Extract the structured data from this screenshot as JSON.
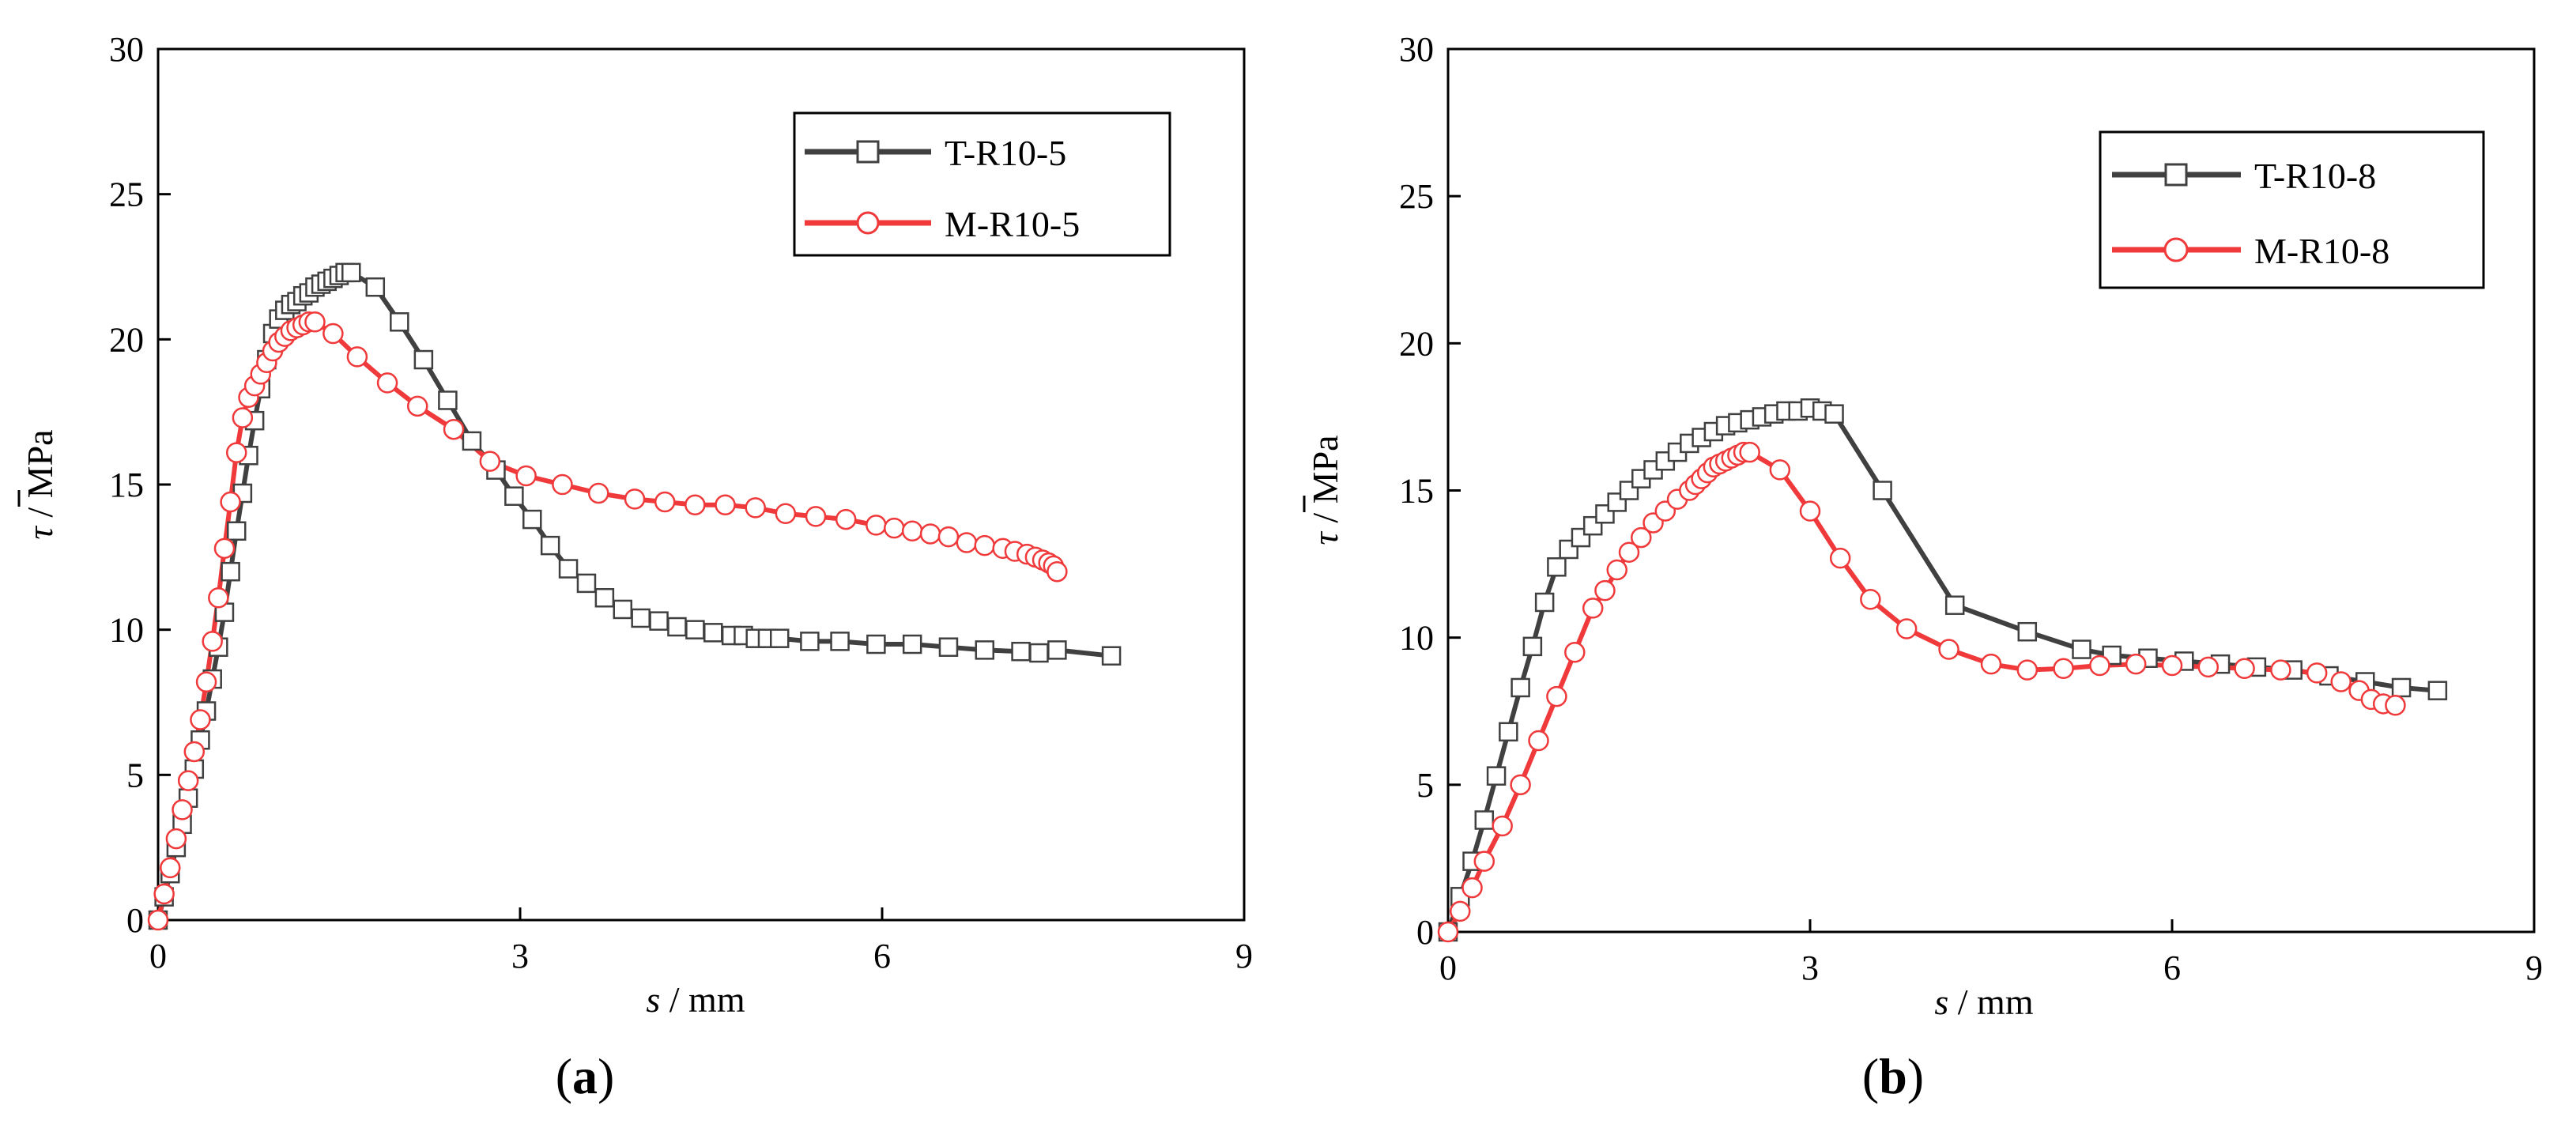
{
  "chart_data": [
    {
      "type": "line",
      "panel_label": "a",
      "xlabel_var": "s",
      "xlabel_unit": " / mm",
      "ylabel_var": "τ",
      "ylabel_unit": " / MPa",
      "xlim": [
        0,
        9
      ],
      "ylim": [
        0,
        30
      ],
      "x_ticks": [
        0,
        3,
        6,
        9
      ],
      "y_ticks": [
        0,
        5,
        10,
        15,
        20,
        25,
        30
      ],
      "grid": false,
      "legend_position": "top-right",
      "series": [
        {
          "name": "T-R10-5",
          "color": "#404040",
          "marker": "square",
          "x": [
            0,
            0.05,
            0.1,
            0.15,
            0.2,
            0.25,
            0.3,
            0.35,
            0.4,
            0.45,
            0.5,
            0.55,
            0.6,
            0.65,
            0.7,
            0.75,
            0.8,
            0.85,
            0.9,
            0.95,
            1.0,
            1.05,
            1.1,
            1.15,
            1.2,
            1.25,
            1.3,
            1.35,
            1.4,
            1.45,
            1.5,
            1.55,
            1.6,
            1.8,
            2.0,
            2.2,
            2.4,
            2.6,
            2.8,
            2.95,
            3.1,
            3.25,
            3.4,
            3.55,
            3.7,
            3.85,
            4.0,
            4.15,
            4.3,
            4.45,
            4.6,
            4.75,
            4.85,
            4.95,
            5.05,
            5.15,
            5.4,
            5.65,
            5.95,
            6.25,
            6.55,
            6.85,
            7.15,
            7.3,
            7.45,
            7.9
          ],
          "y": [
            0,
            0.8,
            1.6,
            2.5,
            3.3,
            4.2,
            5.2,
            6.2,
            7.2,
            8.3,
            9.4,
            10.6,
            12.0,
            13.4,
            14.7,
            16.0,
            17.2,
            18.3,
            19.3,
            20.2,
            20.7,
            21.0,
            21.2,
            21.3,
            21.5,
            21.6,
            21.8,
            21.9,
            22.0,
            22.1,
            22.2,
            22.3,
            22.3,
            21.8,
            20.6,
            19.3,
            17.9,
            16.5,
            15.5,
            14.6,
            13.8,
            12.9,
            12.1,
            11.6,
            11.1,
            10.7,
            10.4,
            10.3,
            10.1,
            10.0,
            9.9,
            9.8,
            9.8,
            9.7,
            9.7,
            9.7,
            9.6,
            9.6,
            9.5,
            9.5,
            9.4,
            9.3,
            9.25,
            9.2,
            9.3,
            9.1
          ]
        },
        {
          "name": "M-R10-5",
          "color": "#f0393a",
          "marker": "circle",
          "x": [
            0,
            0.05,
            0.1,
            0.15,
            0.2,
            0.25,
            0.3,
            0.35,
            0.4,
            0.45,
            0.5,
            0.55,
            0.6,
            0.65,
            0.7,
            0.75,
            0.8,
            0.85,
            0.9,
            0.95,
            1.0,
            1.05,
            1.1,
            1.15,
            1.2,
            1.25,
            1.3,
            1.45,
            1.65,
            1.9,
            2.15,
            2.45,
            2.75,
            3.05,
            3.35,
            3.65,
            3.95,
            4.2,
            4.45,
            4.7,
            4.95,
            5.2,
            5.45,
            5.7,
            5.95,
            6.1,
            6.25,
            6.4,
            6.55,
            6.7,
            6.85,
            7.0,
            7.1,
            7.2,
            7.27,
            7.33,
            7.38,
            7.42,
            7.45
          ],
          "y": [
            0,
            0.9,
            1.8,
            2.8,
            3.8,
            4.8,
            5.8,
            6.9,
            8.2,
            9.6,
            11.1,
            12.8,
            14.4,
            16.1,
            17.3,
            18.0,
            18.4,
            18.8,
            19.2,
            19.6,
            19.9,
            20.1,
            20.3,
            20.4,
            20.5,
            20.6,
            20.6,
            20.2,
            19.4,
            18.5,
            17.7,
            16.9,
            15.8,
            15.3,
            15.0,
            14.7,
            14.5,
            14.4,
            14.3,
            14.3,
            14.2,
            14.0,
            13.9,
            13.8,
            13.6,
            13.5,
            13.4,
            13.3,
            13.2,
            13.0,
            12.9,
            12.8,
            12.7,
            12.6,
            12.5,
            12.4,
            12.3,
            12.2,
            12.0
          ]
        }
      ]
    },
    {
      "type": "line",
      "panel_label": "b",
      "xlabel_var": "s",
      "xlabel_unit": " / mm",
      "ylabel_var": "τ",
      "ylabel_unit": " / MPa",
      "xlim": [
        0,
        9
      ],
      "ylim": [
        0,
        30
      ],
      "x_ticks": [
        0,
        3,
        6,
        9
      ],
      "y_ticks": [
        0,
        5,
        10,
        15,
        20,
        25,
        30
      ],
      "grid": false,
      "legend_position": "top-right",
      "series": [
        {
          "name": "T-R10-8",
          "color": "#404040",
          "marker": "square",
          "x": [
            0,
            0.1,
            0.2,
            0.3,
            0.4,
            0.5,
            0.6,
            0.7,
            0.8,
            0.9,
            1.0,
            1.1,
            1.2,
            1.3,
            1.4,
            1.5,
            1.6,
            1.7,
            1.8,
            1.9,
            2.0,
            2.1,
            2.2,
            2.3,
            2.4,
            2.5,
            2.6,
            2.7,
            2.8,
            2.9,
            3.0,
            3.1,
            3.2,
            3.6,
            4.2,
            4.8,
            5.25,
            5.5,
            5.8,
            6.1,
            6.4,
            6.7,
            7.0,
            7.3,
            7.6,
            7.9,
            8.2
          ],
          "y": [
            0,
            1.2,
            2.4,
            3.8,
            5.3,
            6.8,
            8.3,
            9.7,
            11.2,
            12.4,
            13.0,
            13.4,
            13.8,
            14.2,
            14.6,
            15.0,
            15.4,
            15.7,
            16.0,
            16.3,
            16.6,
            16.8,
            17.0,
            17.2,
            17.3,
            17.4,
            17.5,
            17.6,
            17.7,
            17.7,
            17.8,
            17.7,
            17.6,
            15.0,
            11.1,
            10.2,
            9.6,
            9.4,
            9.3,
            9.2,
            9.1,
            9.0,
            8.9,
            8.7,
            8.5,
            8.3,
            8.2
          ]
        },
        {
          "name": "M-R10-8",
          "color": "#f0393a",
          "marker": "circle",
          "x": [
            0,
            0.1,
            0.2,
            0.3,
            0.45,
            0.6,
            0.75,
            0.9,
            1.05,
            1.2,
            1.3,
            1.4,
            1.5,
            1.6,
            1.7,
            1.8,
            1.9,
            2.0,
            2.05,
            2.1,
            2.15,
            2.2,
            2.25,
            2.3,
            2.35,
            2.4,
            2.45,
            2.5,
            2.75,
            3.0,
            3.25,
            3.5,
            3.8,
            4.15,
            4.5,
            4.8,
            5.1,
            5.4,
            5.7,
            6.0,
            6.3,
            6.6,
            6.9,
            7.2,
            7.4,
            7.55,
            7.65,
            7.75,
            7.85
          ],
          "y": [
            0,
            0.7,
            1.5,
            2.4,
            3.6,
            5.0,
            6.5,
            8.0,
            9.5,
            11.0,
            11.6,
            12.3,
            12.9,
            13.4,
            13.9,
            14.3,
            14.7,
            15.0,
            15.2,
            15.4,
            15.6,
            15.8,
            15.9,
            16.0,
            16.1,
            16.2,
            16.3,
            16.3,
            15.7,
            14.3,
            12.7,
            11.3,
            10.3,
            9.6,
            9.1,
            8.9,
            8.95,
            9.05,
            9.1,
            9.05,
            9.0,
            8.95,
            8.9,
            8.8,
            8.5,
            8.2,
            7.9,
            7.75,
            7.7
          ]
        }
      ]
    }
  ]
}
